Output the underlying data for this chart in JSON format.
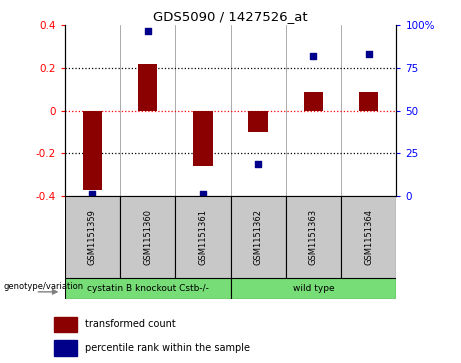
{
  "title": "GDS5090 / 1427526_at",
  "samples": [
    "GSM1151359",
    "GSM1151360",
    "GSM1151361",
    "GSM1151362",
    "GSM1151363",
    "GSM1151364"
  ],
  "bar_values": [
    -0.37,
    0.22,
    -0.26,
    -0.1,
    0.09,
    0.09
  ],
  "percentile_values": [
    1,
    97,
    1,
    19,
    82,
    83
  ],
  "bar_color": "#8B0000",
  "dot_color": "#00008B",
  "ylim_left": [
    -0.4,
    0.4
  ],
  "ylim_right": [
    0,
    100
  ],
  "yticks_left": [
    -0.4,
    -0.2,
    0.0,
    0.2,
    0.4
  ],
  "yticks_right": [
    0,
    25,
    50,
    75,
    100
  ],
  "ytick_labels_left": [
    "-0.4",
    "-0.2",
    "0",
    "0.2",
    "0.4"
  ],
  "ytick_labels_right": [
    "0",
    "25",
    "50",
    "75",
    "100%"
  ],
  "legend_items": [
    {
      "color": "#8B0000",
      "label": "transformed count"
    },
    {
      "color": "#00008B",
      "label": "percentile rank within the sample"
    }
  ],
  "group1_label": "cystatin B knockout Cstb-/-",
  "group2_label": "wild type",
  "group_label_text": "genotype/variation",
  "sample_bg_color": "#C8C8C8",
  "group_bg_color": "#77DD77",
  "bar_width": 0.35,
  "x_positions": [
    0,
    1,
    2,
    3,
    4,
    5
  ]
}
